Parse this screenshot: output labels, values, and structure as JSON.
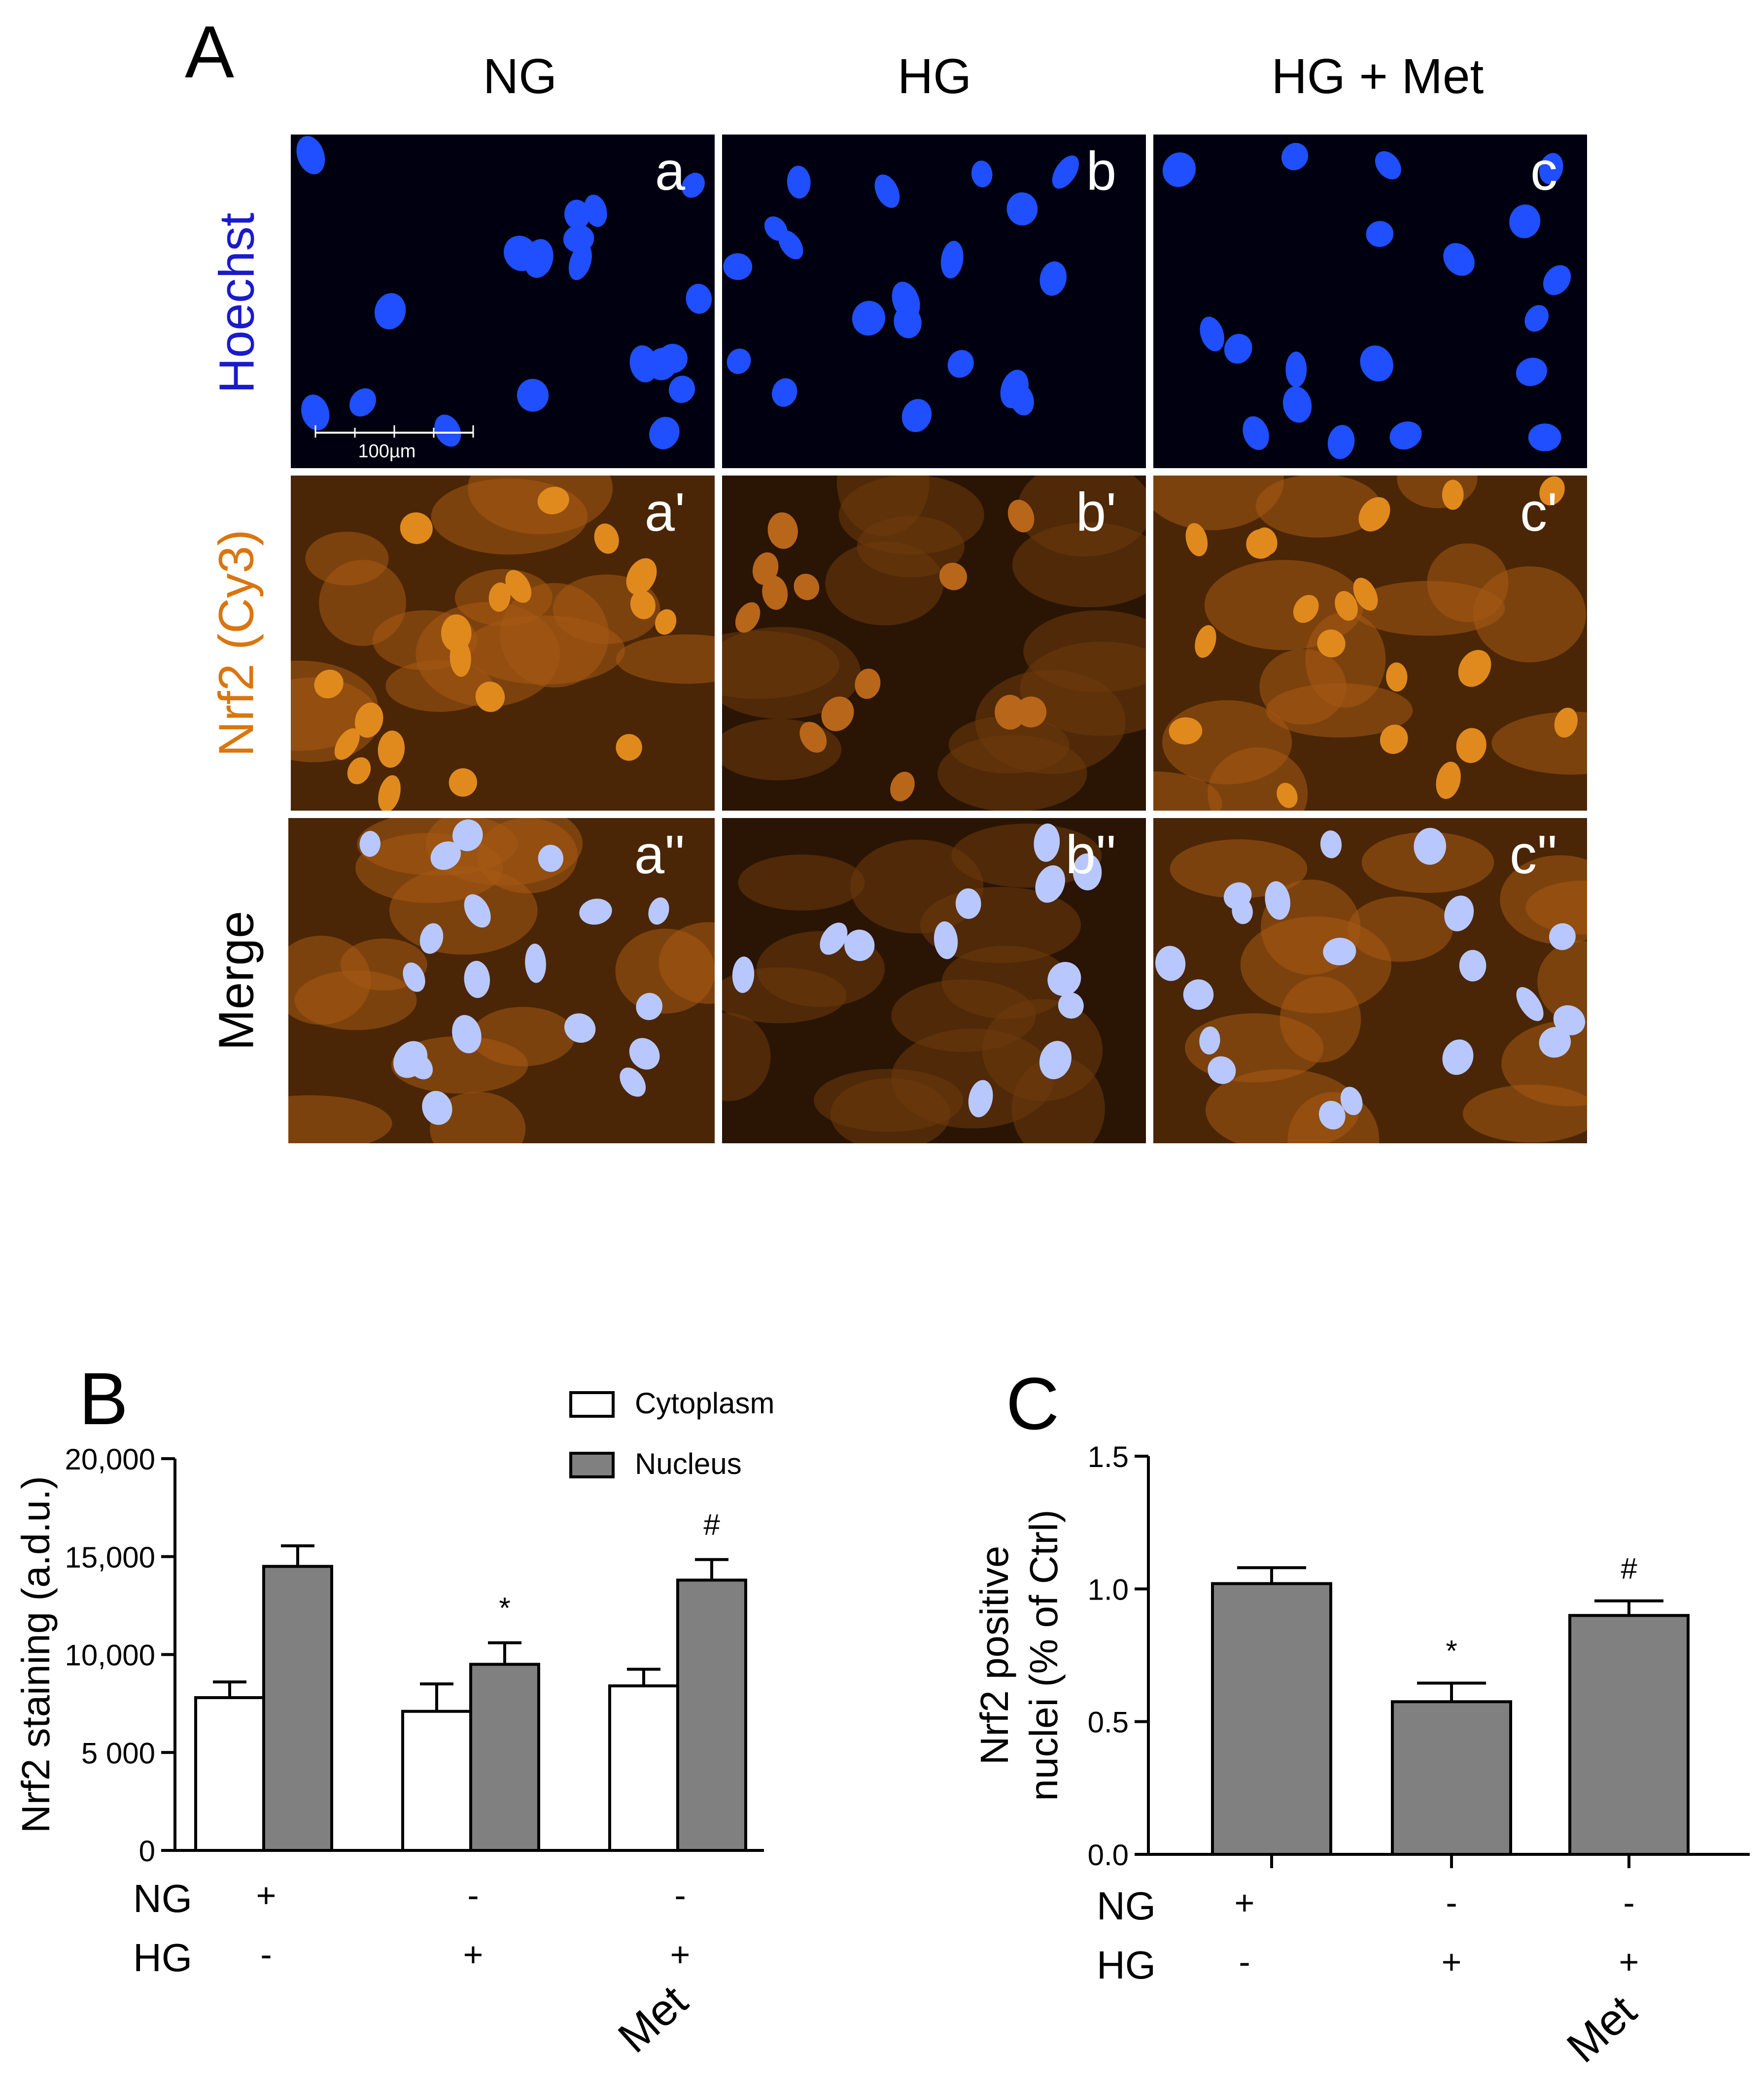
{
  "panel_a": {
    "letter": "A",
    "columns": [
      "NG",
      "HG",
      "HG + Met"
    ],
    "rows": [
      {
        "label": "Hoechst",
        "color": "#1a1acc"
      },
      {
        "label": "Nrf2 (Cy3)",
        "color": "#d9760f"
      },
      {
        "label": "Merge",
        "color": "#000000"
      }
    ],
    "tile_letters": [
      "a",
      "b",
      "c",
      "a'",
      "b'",
      "c'",
      "a''",
      "b''",
      "c''"
    ],
    "scale_bar_label": "100µm",
    "colors": {
      "hoechst": "#1f4fff",
      "nrf2": "#e08a1e",
      "merge_bg": "#5a3208"
    }
  },
  "chart_data": [
    {
      "panel": "B",
      "type": "bar",
      "ylabel": "Nrf2 staining (a.d.u.)",
      "ylim": [
        0,
        20000
      ],
      "yticks": [
        "0",
        "5 000",
        "10,000",
        "15,000",
        "20,000"
      ],
      "ytick_values": [
        0,
        5000,
        10000,
        15000,
        20000
      ],
      "categories": [
        "NG",
        "HG",
        "Met"
      ],
      "series": [
        {
          "name": "Cytoplasm",
          "color": "#ffffff",
          "values": [
            7800,
            7100,
            8400
          ],
          "errors": [
            800,
            1400,
            850
          ]
        },
        {
          "name": "Nucleus",
          "color": "#808080",
          "values": [
            14500,
            9500,
            13800
          ],
          "errors": [
            1050,
            1100,
            1050
          ]
        }
      ],
      "annotations": [
        {
          "series": "Nucleus",
          "category": 1,
          "text": "*"
        },
        {
          "series": "Nucleus",
          "category": 2,
          "text": "#"
        }
      ],
      "conditions": [
        {
          "label": "NG",
          "values": [
            "+",
            "-",
            "-"
          ]
        },
        {
          "label": "HG",
          "values": [
            "-",
            "+",
            "+"
          ]
        }
      ],
      "extra_label": "Met",
      "legend_position": "top-right"
    },
    {
      "panel": "C",
      "type": "bar",
      "ylabel_lines": [
        "Nrf2 positive",
        "nuclei (% of Ctrl)"
      ],
      "ylim": [
        0,
        1.5
      ],
      "yticks": [
        "0.0",
        "0.5",
        "1.0",
        "1.5"
      ],
      "ytick_values": [
        0,
        0.5,
        1.0,
        1.5
      ],
      "categories": [
        "NG",
        "HG",
        "Met"
      ],
      "values": [
        1.02,
        0.575,
        0.9
      ],
      "errors": [
        0.06,
        0.07,
        0.055
      ],
      "bar_color": "#808080",
      "annotations": [
        {
          "category": 1,
          "text": "*"
        },
        {
          "category": 2,
          "text": "#"
        }
      ],
      "conditions": [
        {
          "label": "NG",
          "values": [
            "+",
            "-",
            "-"
          ]
        },
        {
          "label": "HG",
          "values": [
            "-",
            "+",
            "+"
          ]
        }
      ],
      "extra_label": "Met"
    }
  ]
}
